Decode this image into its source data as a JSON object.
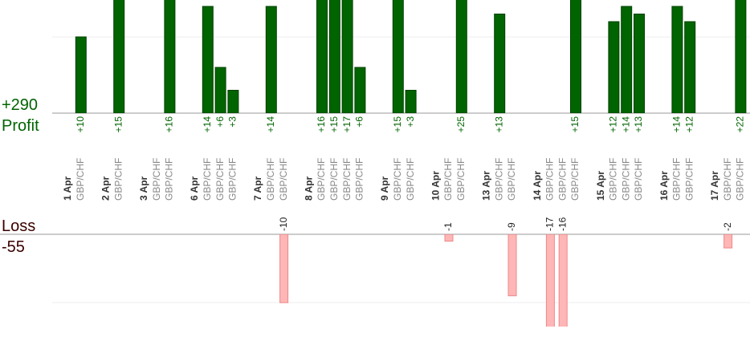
{
  "chart_data": {
    "type": "bar",
    "profit_total": {
      "value": 290,
      "label": "+290"
    },
    "profit_label": "Profit",
    "loss_label": "Loss",
    "loss_total": -55,
    "profit_color": "#006400",
    "loss_color": "#ffb6b6",
    "profit_ylim": [
      0,
      14.84
    ],
    "profit_yticks": [
      10
    ],
    "loss_ylim": [
      0,
      -13.5
    ],
    "loss_yticks": [
      -10
    ],
    "grid": true,
    "days": [
      {
        "label": "1 Apr",
        "trades": [
          {
            "symbol": "GBP/CHF",
            "value": 10,
            "label": "+10"
          }
        ]
      },
      {
        "label": "2 Apr",
        "trades": [
          {
            "symbol": "GBP/CHF",
            "value": 15,
            "label": "+15"
          }
        ]
      },
      {
        "label": "3 Apr",
        "trades": [
          {
            "symbol": "GBP/CHF",
            "value": null
          },
          {
            "symbol": "GBP/CHF",
            "value": 16,
            "label": "+16"
          }
        ]
      },
      {
        "label": "6 Apr",
        "trades": [
          {
            "symbol": "GBP/CHF",
            "value": 14,
            "label": "+14"
          },
          {
            "symbol": "GBP/CHF",
            "value": 6,
            "label": "+6"
          },
          {
            "symbol": "GBP/CHF",
            "value": 3,
            "label": "+3"
          }
        ]
      },
      {
        "label": "7 Apr",
        "trades": [
          {
            "symbol": "GBP/CHF",
            "value": 14,
            "label": "+14"
          },
          {
            "symbol": "GBP/CHF",
            "value": -10
          }
        ]
      },
      {
        "label": "8 Apr",
        "trades": [
          {
            "symbol": "GBP/CHF",
            "value": 16,
            "label": "+16"
          },
          {
            "symbol": "GBP/CHF",
            "value": 15,
            "label": "+15"
          },
          {
            "symbol": "GBP/CHF",
            "value": 17,
            "label": "+17"
          },
          {
            "symbol": "GBP/CHF",
            "value": 6,
            "label": "+6"
          }
        ]
      },
      {
        "label": "9 Apr",
        "trades": [
          {
            "symbol": "GBP/CHF",
            "value": 15,
            "label": "+15"
          },
          {
            "symbol": "GBP/CHF",
            "value": 3,
            "label": "+3"
          }
        ]
      },
      {
        "label": "10 Apr",
        "trades": [
          {
            "symbol": "GBP/CHF",
            "value": -1
          },
          {
            "symbol": "GBP/CHF",
            "value": 25,
            "label": "+25"
          }
        ]
      },
      {
        "label": "13 Apr",
        "trades": [
          {
            "symbol": "GBP/CHF",
            "value": 13,
            "label": "+13"
          },
          {
            "symbol": "GBP/CHF",
            "value": -9
          }
        ]
      },
      {
        "label": "14 Apr",
        "trades": [
          {
            "symbol": "GBP/CHF",
            "value": -17
          },
          {
            "symbol": "GBP/CHF",
            "value": -16
          },
          {
            "symbol": "GBP/CHF",
            "value": 15,
            "label": "+15"
          }
        ]
      },
      {
        "label": "15 Apr",
        "trades": [
          {
            "symbol": "GBP/CHF",
            "value": 12,
            "label": "+12"
          },
          {
            "symbol": "GBP/CHF",
            "value": 14,
            "label": "+14"
          },
          {
            "symbol": "GBP/CHF",
            "value": 13,
            "label": "+13"
          }
        ]
      },
      {
        "label": "16 Apr",
        "trades": [
          {
            "symbol": "GBP/CHF",
            "value": 14,
            "label": "+14"
          },
          {
            "symbol": "GBP/CHF",
            "value": 12,
            "label": "+12"
          }
        ]
      },
      {
        "label": "17 Apr",
        "trades": [
          {
            "symbol": "GBP/CHF",
            "value": -2
          },
          {
            "symbol": "GBP/CHF",
            "value": 22,
            "label": "+22"
          }
        ]
      }
    ]
  }
}
